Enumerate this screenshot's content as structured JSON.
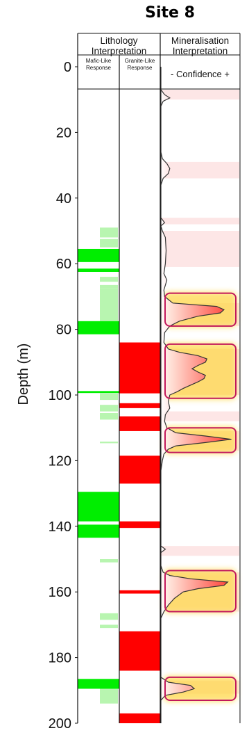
{
  "chart_data": {
    "type": "well-log",
    "title": "Site 8",
    "ylabel": "Depth (m)",
    "ylim": [
      0,
      200
    ],
    "y_ticks": [
      "0",
      "20",
      "40",
      "60",
      "80",
      "100",
      "120",
      "140",
      "160",
      "180",
      "200"
    ],
    "panels": {
      "lithology": {
        "title_lines": [
          "Lithology",
          "Interpretation"
        ],
        "mafic": {
          "label_lines": [
            "Mafic-Like",
            "Response"
          ],
          "color": "#00ee00",
          "faint_color": "#b8f5b0",
          "strong": [
            [
              55.5,
              59.5
            ],
            [
              61.5,
              62.5
            ],
            [
              77.5,
              81.5
            ],
            [
              98.8,
              99.4
            ],
            [
              129.5,
              138.5
            ],
            [
              139.5,
              143.5
            ],
            [
              186.5,
              189.5
            ]
          ],
          "faint": [
            [
              49,
              52
            ],
            [
              52.5,
              55
            ],
            [
              64,
              65.5
            ],
            [
              66.5,
              67.5
            ],
            [
              67.5,
              77.5
            ],
            [
              99.5,
              101.5
            ],
            [
              103,
              105
            ],
            [
              105.5,
              107.5
            ],
            [
              114.2,
              114.7
            ],
            [
              150,
              151
            ],
            [
              166.5,
              168.5
            ],
            [
              170,
              171
            ],
            [
              189.5,
              194
            ]
          ]
        },
        "granite": {
          "label_lines": [
            "Granite-Like",
            "Response"
          ],
          "color": "#ff0000",
          "strong": [
            [
              84,
              99.5
            ],
            [
              102.5,
              104
            ],
            [
              106.5,
              111
            ],
            [
              118.5,
              127
            ],
            [
              138.5,
              140.5
            ],
            [
              159.5,
              160.5
            ],
            [
              172,
              184
            ],
            [
              197,
              200
            ]
          ]
        }
      },
      "mineralisation": {
        "title_lines": [
          "Mineralisation",
          "Interpretation"
        ],
        "confidence_label": "-  Confidence  +",
        "fill_color": "#ff3333",
        "box_color": "#c2185b",
        "glow_color": "#ffd84a",
        "profile": [
          [
            0,
            0
          ],
          [
            7,
            0
          ],
          [
            8.5,
            0.05
          ],
          [
            9.5,
            0.12
          ],
          [
            10.5,
            0.03
          ],
          [
            12,
            0
          ],
          [
            26,
            0
          ],
          [
            28,
            0.02
          ],
          [
            29.5,
            0.08
          ],
          [
            31,
            0.12
          ],
          [
            32.5,
            0.1
          ],
          [
            34,
            0.03
          ],
          [
            36,
            0
          ],
          [
            46,
            0
          ],
          [
            47.5,
            0.05
          ],
          [
            48.5,
            0
          ],
          [
            50,
            0.02
          ],
          [
            52,
            0.06
          ],
          [
            56,
            0.07
          ],
          [
            60,
            0.06
          ],
          [
            63,
            0.04
          ],
          [
            65,
            0.08
          ],
          [
            68,
            0.04
          ],
          [
            70,
            0.05
          ],
          [
            72,
            0.16
          ],
          [
            73,
            0.75
          ],
          [
            74,
            0.85
          ],
          [
            75,
            0.8
          ],
          [
            76,
            0.5
          ],
          [
            77.5,
            0.25
          ],
          [
            79,
            0.12
          ],
          [
            81,
            0.05
          ],
          [
            84,
            0.04
          ],
          [
            86,
            0.1
          ],
          [
            87,
            0.25
          ],
          [
            88,
            0.5
          ],
          [
            89,
            0.62
          ],
          [
            90,
            0.6
          ],
          [
            91,
            0.5
          ],
          [
            92,
            0.42
          ],
          [
            93,
            0.5
          ],
          [
            94,
            0.6
          ],
          [
            95,
            0.58
          ],
          [
            96,
            0.5
          ],
          [
            97,
            0.4
          ],
          [
            98,
            0.3
          ],
          [
            99,
            0.22
          ],
          [
            100,
            0.12
          ],
          [
            102,
            0.1
          ],
          [
            104,
            0.12
          ],
          [
            106,
            0.06
          ],
          [
            108,
            0.05
          ],
          [
            110,
            0.08
          ],
          [
            111.5,
            0.2
          ],
          [
            112.5,
            0.6
          ],
          [
            113.5,
            0.95
          ],
          [
            114.5,
            0.6
          ],
          [
            115.5,
            0.2
          ],
          [
            116.5,
            0.1
          ],
          [
            118,
            0.04
          ],
          [
            120,
            0.02
          ],
          [
            123,
            0
          ],
          [
            146,
            0
          ],
          [
            147,
            0.06
          ],
          [
            148,
            0
          ],
          [
            152,
            0
          ],
          [
            154,
            0.03
          ],
          [
            155,
            0.12
          ],
          [
            156,
            0.4
          ],
          [
            157,
            0.9
          ],
          [
            158,
            0.85
          ],
          [
            159,
            0.5
          ],
          [
            160,
            0.3
          ],
          [
            162,
            0.18
          ],
          [
            164,
            0.1
          ],
          [
            166,
            0.04
          ],
          [
            168,
            0
          ],
          [
            186,
            0
          ],
          [
            187.5,
            0.1
          ],
          [
            188.5,
            0.4
          ],
          [
            189.5,
            0.45
          ],
          [
            190.5,
            0.3
          ],
          [
            191.5,
            0.06
          ],
          [
            193,
            0
          ],
          [
            200,
            0
          ]
        ],
        "shade_bands": [
          [
            7,
            10
          ],
          [
            29,
            34
          ],
          [
            46,
            48
          ],
          [
            50,
            61
          ],
          [
            72,
            79
          ],
          [
            86,
            100
          ],
          [
            105,
            108
          ],
          [
            111,
            117
          ],
          [
            146,
            149
          ],
          [
            154,
            166
          ],
          [
            187,
            191
          ]
        ],
        "boxes": [
          [
            69,
            79
          ],
          [
            84.5,
            101
          ],
          [
            110,
            117.5
          ],
          [
            153.5,
            166
          ],
          [
            186,
            193
          ]
        ]
      }
    }
  }
}
